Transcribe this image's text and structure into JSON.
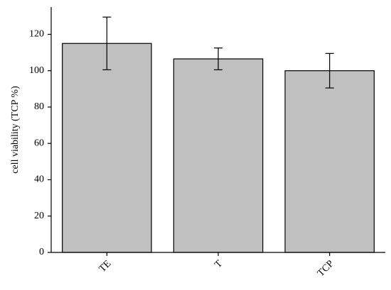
{
  "chart_data": {
    "type": "bar",
    "y_label": "cell viability (TCP %)",
    "categories": [
      "TE",
      "T",
      "TCP"
    ],
    "values": [
      115,
      106.5,
      100
    ],
    "errors": [
      14.5,
      6,
      9.5
    ],
    "color": "#c0c0c0",
    "ylim": [
      0,
      135
    ],
    "yticks": [
      0,
      20,
      40,
      60,
      80,
      100,
      120
    ],
    "grid": false
  }
}
